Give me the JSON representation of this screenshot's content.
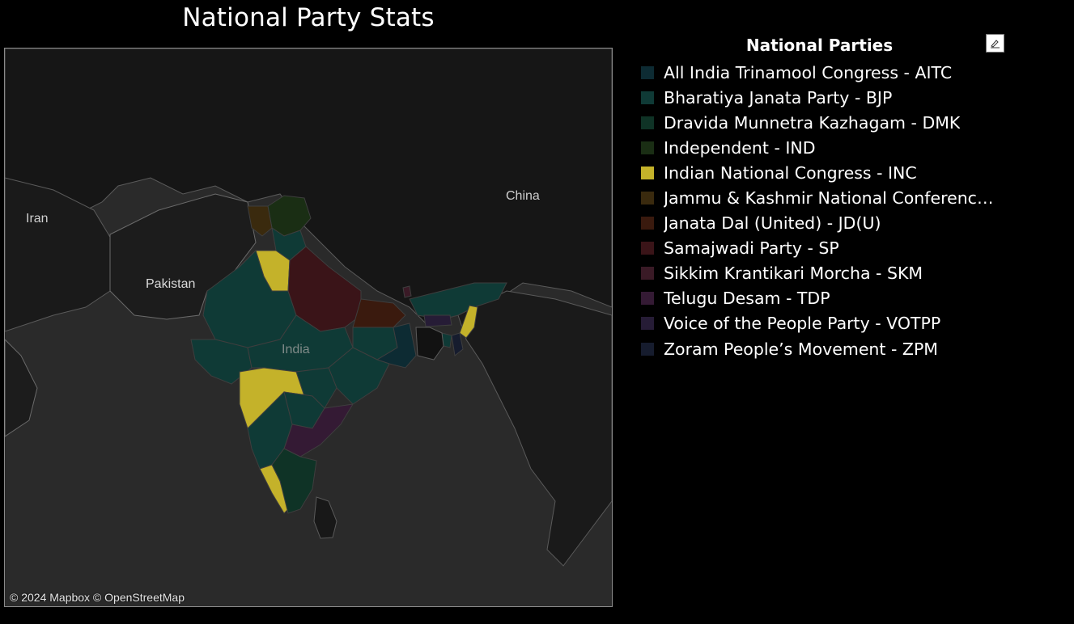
{
  "title": "National Party Stats",
  "map": {
    "labels": {
      "iran": "Iran",
      "pakistan": "Pakistan",
      "india": "India",
      "china": "China"
    },
    "attribution": "© 2024 Mapbox  © OpenStreetMap"
  },
  "legend": {
    "title": "National Parties",
    "items": [
      {
        "label": "All India Trinamool Congress - AITC",
        "color": "#0d2b33"
      },
      {
        "label": "Bharatiya Janata Party - BJP",
        "color": "#0f3a36"
      },
      {
        "label": "Dravida Munnetra Kazhagam - DMK",
        "color": "#0f3326"
      },
      {
        "label": "Independent - IND",
        "color": "#1a2e14"
      },
      {
        "label": "Indian National Congress - INC",
        "color": "#c4b22a"
      },
      {
        "label": "Jammu & Kashmir National Conference -...",
        "color": "#3a2a0e"
      },
      {
        "label": "Janata Dal (United) - JD(U)",
        "color": "#3a1a0e"
      },
      {
        "label": "Samajwadi Party - SP",
        "color": "#3a1418"
      },
      {
        "label": "Sikkim Krantikari Morcha - SKM",
        "color": "#3a1a26"
      },
      {
        "label": "Telugu Desam - TDP",
        "color": "#341a34"
      },
      {
        "label": "Voice of the People Party - VOTPP",
        "color": "#261c36"
      },
      {
        "label": "Zoram People’s Movement - ZPM",
        "color": "#161c2e"
      }
    ]
  },
  "icons": {
    "edit": "pen-icon"
  }
}
